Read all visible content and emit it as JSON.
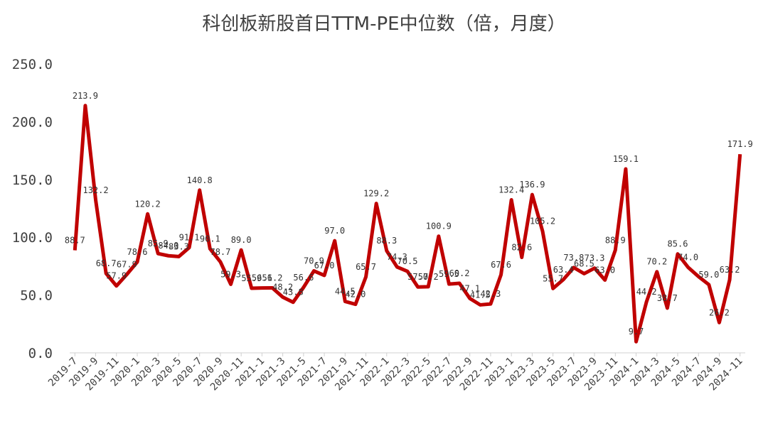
{
  "chart_data": {
    "type": "line",
    "title": "科创板新股首日TTM-PE中位数（倍，月度）",
    "categories": [
      "2019-7",
      null,
      "2019-9",
      null,
      "2019-11",
      null,
      "2020-1",
      null,
      "2020-3",
      null,
      "2020-5",
      null,
      "2020-7",
      null,
      "2020-9",
      null,
      "2020-11",
      null,
      "2021-1",
      null,
      "2021-3",
      null,
      "2021-5",
      null,
      "2021-7",
      null,
      "2021-9",
      null,
      "2021-11",
      null,
      "2022-1",
      null,
      "2022-3",
      null,
      "2022-5",
      null,
      "2022-7",
      null,
      "2022-9",
      null,
      "2022-11",
      null,
      "2023-1",
      null,
      "2023-3",
      null,
      "2023-5",
      null,
      "2023-7",
      null,
      "2023-9",
      null,
      "2023-11",
      null,
      "2024-1",
      null,
      "2024-3",
      null,
      "2024-5",
      null,
      "2024-7",
      null,
      "2024-9",
      null,
      "2024-11"
    ],
    "series": [
      {
        "name": "科创板新股首日TTM-PE中位数",
        "color": "#c00000",
        "values": [
          88.7,
          213.9,
          132.2,
          68.7,
          57.9,
          67.9,
          78.6,
          120.2,
          85.9,
          84.0,
          83.3,
          91.1,
          140.8,
          90.1,
          78.7,
          59.3,
          89.0,
          55.9,
          56.1,
          56.2,
          48.2,
          43.8,
          56.6,
          70.9,
          67.0,
          97.0,
          44.5,
          42.0,
          65.7,
          129.2,
          88.3,
          74.3,
          70.5,
          57.0,
          57.2,
          100.9,
          59.5,
          60.2,
          47.1,
          41.5,
          42.3,
          67.6,
          132.4,
          82.6,
          136.9,
          105.2,
          55.7,
          63.4,
          73.8,
          68.5,
          73.3,
          63.0,
          88.9,
          159.1,
          9.7,
          44.2,
          70.2,
          38.7,
          85.6,
          74.0,
          66.0,
          59.0,
          26.2,
          63.2,
          171.9
        ],
        "value_labels": [
          "88.7",
          "213.9",
          "132.2",
          "68.7",
          "57.9",
          "67.9",
          "78.6",
          "120.2",
          "85.9",
          "84.0",
          "83.3",
          "91.1",
          "140.8",
          "90.1",
          "78.7",
          "59.3",
          "89.0",
          "55.9",
          "56.1",
          "56.2",
          "48.2",
          "43.8",
          "56.6",
          "70.9",
          "67.0",
          "97.0",
          "44.5",
          "42.0",
          "65.7",
          "129.2",
          "88.3",
          "74.3",
          "70.5",
          "57.0",
          "57.2",
          "100.9",
          "59.5",
          "60.2",
          "47.1",
          "41.5",
          "42.3",
          "67.6",
          "132.4",
          "82.6",
          "136.9",
          "105.2",
          "55.7",
          "63.4",
          "73.8",
          "68.5",
          "73.3",
          "63.0",
          "88.9",
          "159.1",
          "9.7",
          "44.2",
          "70.2",
          "38.7",
          "85.6",
          "74.0",
          null,
          "59.0",
          "26.2",
          "63.2",
          "171.9"
        ]
      }
    ],
    "ylim": [
      0,
      250
    ],
    "yticks": [
      {
        "value": 0,
        "label": "0.0"
      },
      {
        "value": 50,
        "label": "50.0"
      },
      {
        "value": 100,
        "label": "100.0"
      },
      {
        "value": 150,
        "label": "150.0"
      },
      {
        "value": 200,
        "label": "200.0"
      },
      {
        "value": 250,
        "label": "250.0"
      }
    ]
  }
}
